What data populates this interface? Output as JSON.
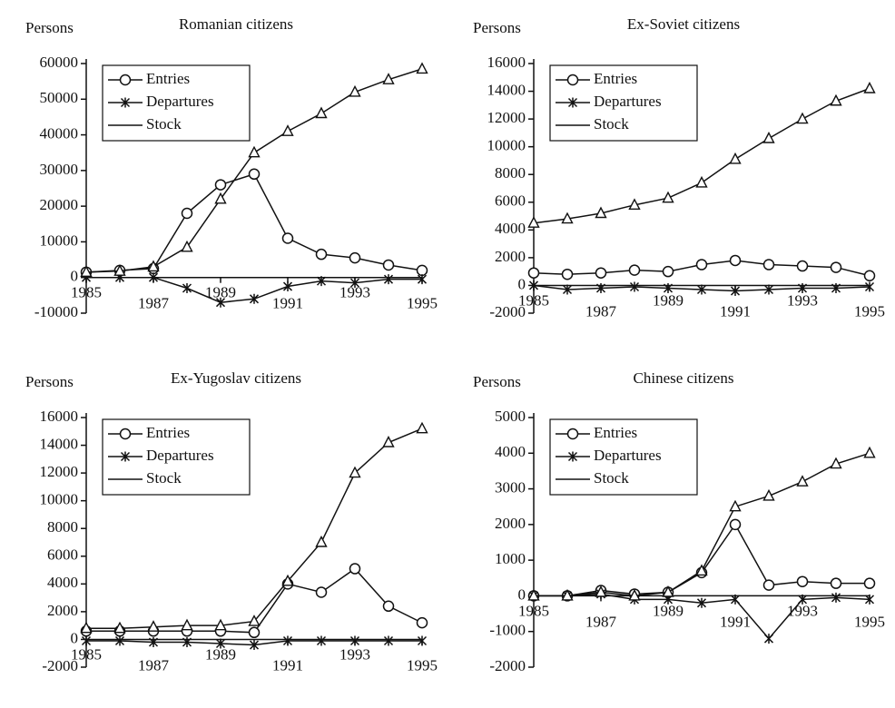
{
  "chart_data": [
    {
      "type": "line",
      "title": "Romanian citizens",
      "ylabel": "Persons",
      "x": [
        1985,
        1986,
        1987,
        1988,
        1989,
        1990,
        1991,
        1992,
        1993,
        1994,
        1995
      ],
      "xticks": [
        1985,
        1987,
        1989,
        1991,
        1993,
        1995
      ],
      "ylim": [
        -10000,
        60000
      ],
      "yticks": [
        -10000,
        0,
        10000,
        20000,
        30000,
        40000,
        50000,
        60000
      ],
      "series": [
        {
          "name": "Entries",
          "color": "#111111",
          "marker": "circle",
          "values": [
            1500,
            2000,
            2500,
            18000,
            26000,
            29000,
            11000,
            6500,
            5500,
            3500,
            2000
          ]
        },
        {
          "name": "Departures",
          "color": "#111111",
          "marker": "star",
          "values": [
            0,
            0,
            0,
            -3000,
            -7000,
            -6000,
            -2500,
            -1000,
            -1500,
            -500,
            -500
          ]
        },
        {
          "name": "Stock",
          "color": "#111111",
          "marker": "triangle",
          "values": [
            1500,
            1800,
            3000,
            8500,
            22000,
            35000,
            41000,
            46000,
            52000,
            55500,
            58500
          ]
        }
      ]
    },
    {
      "type": "line",
      "title": "Ex-Soviet citizens",
      "ylabel": "Persons",
      "x": [
        1985,
        1986,
        1987,
        1988,
        1989,
        1990,
        1991,
        1992,
        1993,
        1994,
        1995
      ],
      "xticks": [
        1985,
        1987,
        1989,
        1991,
        1993,
        1995
      ],
      "ylim": [
        -2000,
        16000
      ],
      "yticks": [
        -2000,
        0,
        2000,
        4000,
        6000,
        8000,
        10000,
        12000,
        14000,
        16000
      ],
      "series": [
        {
          "name": "Entries",
          "color": "#111111",
          "marker": "circle",
          "values": [
            900,
            800,
            900,
            1100,
            1000,
            1500,
            1800,
            1500,
            1400,
            1300,
            700
          ]
        },
        {
          "name": "Departures",
          "color": "#111111",
          "marker": "star",
          "values": [
            0,
            -300,
            -200,
            -100,
            -200,
            -300,
            -400,
            -300,
            -200,
            -200,
            -100
          ]
        },
        {
          "name": "Stock",
          "color": "#111111",
          "marker": "triangle",
          "values": [
            4500,
            4800,
            5200,
            5800,
            6300,
            7400,
            9100,
            10600,
            12000,
            13300,
            14200
          ]
        }
      ]
    },
    {
      "type": "line",
      "title": "Ex-Yugoslav citizens",
      "ylabel": "Persons",
      "x": [
        1985,
        1986,
        1987,
        1988,
        1989,
        1990,
        1991,
        1992,
        1993,
        1994,
        1995
      ],
      "xticks": [
        1985,
        1987,
        1989,
        1991,
        1993,
        1995
      ],
      "ylim": [
        -2000,
        16000
      ],
      "yticks": [
        -2000,
        0,
        2000,
        4000,
        6000,
        8000,
        10000,
        12000,
        14000,
        16000
      ],
      "series": [
        {
          "name": "Entries",
          "color": "#111111",
          "marker": "circle",
          "values": [
            600,
            600,
            600,
            600,
            600,
            500,
            4000,
            3400,
            5100,
            2400,
            1200
          ]
        },
        {
          "name": "Departures",
          "color": "#111111",
          "marker": "star",
          "values": [
            -100,
            -100,
            -200,
            -200,
            -300,
            -400,
            -100,
            -100,
            -100,
            -100,
            -100
          ]
        },
        {
          "name": "Stock",
          "color": "#111111",
          "marker": "triangle",
          "values": [
            800,
            800,
            900,
            1000,
            1000,
            1300,
            4200,
            7000,
            12000,
            14200,
            15200
          ]
        }
      ]
    },
    {
      "type": "line",
      "title": "Chinese citizens",
      "ylabel": "Persons",
      "x": [
        1985,
        1986,
        1987,
        1988,
        1989,
        1990,
        1991,
        1992,
        1993,
        1994,
        1995
      ],
      "xticks": [
        1985,
        1987,
        1989,
        1991,
        1993,
        1995
      ],
      "ylim": [
        -2000,
        5000
      ],
      "yticks": [
        -2000,
        -1000,
        0,
        1000,
        2000,
        3000,
        4000,
        5000
      ],
      "series": [
        {
          "name": "Entries",
          "color": "#111111",
          "marker": "circle",
          "values": [
            0,
            0,
            150,
            50,
            100,
            650,
            2000,
            300,
            400,
            350,
            350
          ]
        },
        {
          "name": "Departures",
          "color": "#111111",
          "marker": "star",
          "values": [
            0,
            0,
            50,
            -100,
            -100,
            -200,
            -100,
            -1200,
            -100,
            -50,
            -100
          ]
        },
        {
          "name": "Stock",
          "color": "#111111",
          "marker": "triangle",
          "values": [
            0,
            0,
            100,
            0,
            100,
            700,
            2500,
            2800,
            3200,
            3700,
            4000
          ]
        }
      ]
    }
  ]
}
